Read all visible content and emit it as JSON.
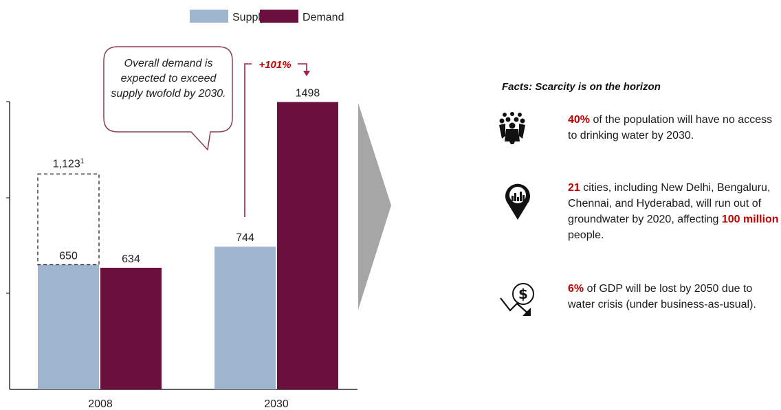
{
  "chart_data": {
    "type": "bar",
    "categories": [
      "2008",
      "2030"
    ],
    "series": [
      {
        "name": "Supply",
        "color": "#9fb4cd",
        "values": [
          650,
          744
        ]
      },
      {
        "name": "Demand",
        "color": "#6b0f3c",
        "values": [
          634,
          1498
        ]
      }
    ],
    "value_labels": {
      "Supply": [
        "650",
        "744"
      ],
      "Demand": [
        "634",
        "1498"
      ]
    },
    "ylim": [
      0,
      1500
    ],
    "legend_position": "top",
    "annotations": {
      "dashed_box": {
        "category": "2008",
        "value": 1123,
        "label": "1,123",
        "footnote": "1"
      },
      "growth": {
        "label": "+101%",
        "color": "#c00000"
      }
    }
  },
  "callout": {
    "text": "Overall demand is expected to exceed supply twofold by 2030."
  },
  "facts": {
    "title": "Facts: Scarcity is on the horizon",
    "highlight_color": "#c00000",
    "items": [
      {
        "icon": "crowd-icon",
        "highlight": "40%",
        "text": " of the population will have no access to drinking water by 2030."
      },
      {
        "icon": "city-location-pin-icon",
        "highlight": "21",
        "text": " cities, including New Delhi, Bengaluru, Chennai, and Hyderabad, will run out of groundwater by 2020, affecting ",
        "highlight2": "100 million",
        "text2": " people."
      },
      {
        "icon": "dollar-decline-icon",
        "highlight": "6%",
        "text": " of GDP will be lost by 2050 due to water crisis (under business-as-usual)."
      }
    ]
  }
}
